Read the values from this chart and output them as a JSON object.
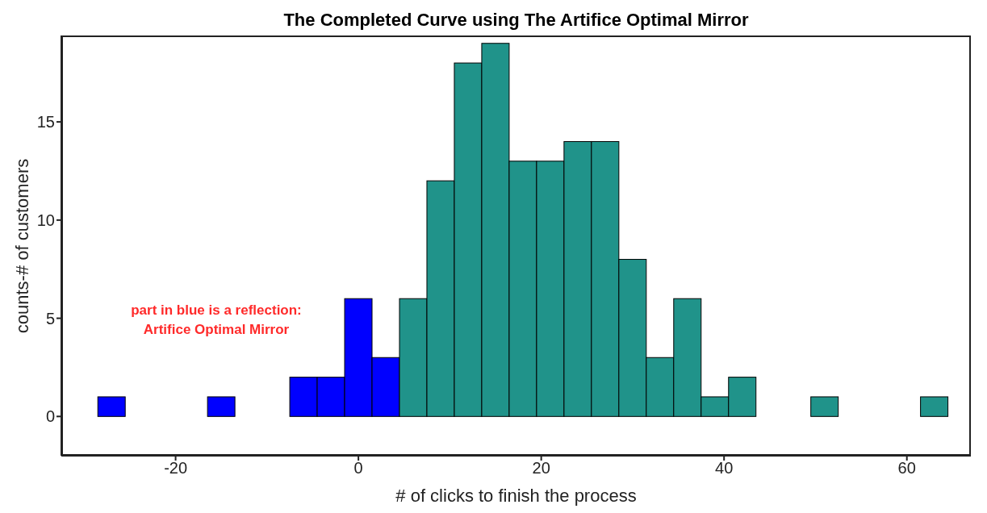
{
  "chart_data": {
    "type": "histogram",
    "title": "The Completed Curve using The Artifice Optimal Mirror",
    "xlabel": "# of clicks to finish the process",
    "ylabel": "counts-# of customers",
    "annotations": [
      "part in blue is a reflection:",
      "Artifice Optimal Mirror"
    ],
    "bins": [
      -28.5,
      -25.5,
      -22.5,
      -19.5,
      -16.5,
      -13.5,
      -10.5,
      -7.5,
      -4.5,
      -1.5,
      1.5,
      4.5,
      7.5,
      10.5,
      13.5,
      16.5,
      19.5,
      22.5,
      25.5,
      28.5,
      31.5,
      34.5,
      37.5,
      40.5,
      43.5,
      46.5,
      49.5,
      52.5,
      55.5,
      58.5,
      61.5,
      64.5
    ],
    "values": [
      1,
      0,
      0,
      0,
      1,
      0,
      0,
      2,
      2,
      6,
      3,
      6,
      12,
      18,
      19,
      13,
      13,
      14,
      14,
      8,
      3,
      6,
      1,
      2,
      0,
      0,
      1,
      0,
      0,
      0,
      1
    ],
    "colors": [
      "#0000ff",
      "#0000ff",
      "#0000ff",
      "#0000ff",
      "#0000ff",
      "#0000ff",
      "#0000ff",
      "#0000ff",
      "#0000ff",
      "#0000ff",
      "#0000ff",
      "#20938a",
      "#20938a",
      "#20938a",
      "#20938a",
      "#20938a",
      "#20938a",
      "#20938a",
      "#20938a",
      "#20938a",
      "#20938a",
      "#20938a",
      "#20938a",
      "#20938a",
      "#20938a",
      "#20938a",
      "#20938a",
      "#20938a",
      "#20938a",
      "#20938a",
      "#20938a"
    ],
    "xlim": [
      -32.5,
      67
    ],
    "ylim": [
      -2,
      19.4
    ],
    "xticks": [
      -20,
      0,
      20,
      40,
      60
    ],
    "yticks": [
      0,
      5,
      10,
      15
    ],
    "grid": false
  }
}
